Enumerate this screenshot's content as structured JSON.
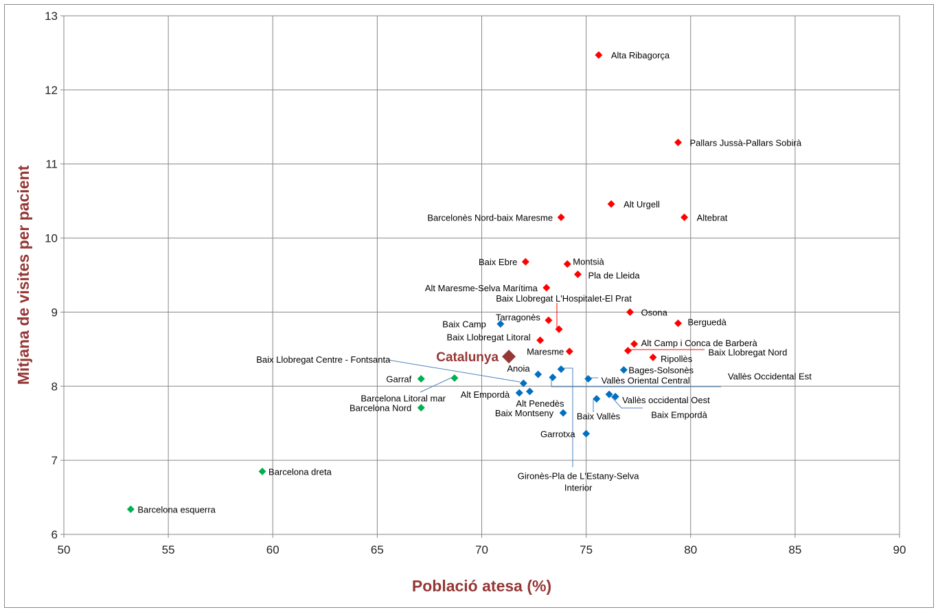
{
  "chart_data": {
    "type": "scatter",
    "xlabel": "Població atesa (%)",
    "ylabel": "Mitjana de visites per pacient",
    "xlim": [
      50,
      90
    ],
    "ylim": [
      6,
      13
    ],
    "x_ticks": [
      "50",
      "55",
      "60",
      "65",
      "70",
      "75",
      "80",
      "85",
      "90"
    ],
    "y_ticks": [
      "6",
      "7",
      "8",
      "9",
      "10",
      "11",
      "12",
      "13"
    ],
    "grid": true,
    "colors": {
      "red": "#ff0000",
      "blue": "#0070c0",
      "green": "#00b050",
      "highlight": "#953735",
      "leader": "#4f81bd"
    },
    "highlight": {
      "label": "Catalunya",
      "x": 71.3,
      "y": 8.4
    },
    "points": [
      {
        "label": "Alta Ribagorça",
        "x": 75.6,
        "y": 12.47,
        "color": "red"
      },
      {
        "label": "Pallars Jussà-Pallars Sobirà",
        "x": 79.4,
        "y": 11.29,
        "color": "red"
      },
      {
        "label": "Alt Urgell",
        "x": 76.2,
        "y": 10.46,
        "color": "red"
      },
      {
        "label": "Altebrat",
        "x": 79.7,
        "y": 10.28,
        "color": "red"
      },
      {
        "label": "Barcelonès Nord-baix Maresme",
        "x": 73.8,
        "y": 10.28,
        "color": "red"
      },
      {
        "label": "Baix Ebre",
        "x": 72.1,
        "y": 9.68,
        "color": "red"
      },
      {
        "label": "Montsià",
        "x": 74.1,
        "y": 9.65,
        "color": "red"
      },
      {
        "label": "Pla de Lleida",
        "x": 74.6,
        "y": 9.51,
        "color": "red"
      },
      {
        "label": "Alt Maresme-Selva Marítima",
        "x": 73.1,
        "y": 9.33,
        "color": "red"
      },
      {
        "label": "Baix Llobregat L'Hospitalet-El Prat",
        "x": 73.7,
        "y": 8.77,
        "color": "red"
      },
      {
        "label": "Tarragonès",
        "x": 73.2,
        "y": 8.89,
        "color": "red"
      },
      {
        "label": "Osona",
        "x": 77.1,
        "y": 9.0,
        "color": "red"
      },
      {
        "label": "Berguedà",
        "x": 79.4,
        "y": 8.85,
        "color": "red"
      },
      {
        "label": "Baix Llobregat Litoral",
        "x": 72.8,
        "y": 8.62,
        "color": "red"
      },
      {
        "label": "Alt Camp i Conca de Barberà",
        "x": 77.3,
        "y": 8.57,
        "color": "red"
      },
      {
        "label": "Baix Llobregat Nord",
        "x": 77.0,
        "y": 8.48,
        "color": "red"
      },
      {
        "label": "Maresme",
        "x": 74.2,
        "y": 8.47,
        "color": "red"
      },
      {
        "label": "Ripollès",
        "x": 78.2,
        "y": 8.39,
        "color": "red"
      },
      {
        "label": "Baix Camp",
        "x": 70.9,
        "y": 8.84,
        "color": "blue"
      },
      {
        "label": "Bages-Solsonès",
        "x": 76.8,
        "y": 8.22,
        "color": "blue"
      },
      {
        "label": "Baix Llobregat Centre - Fontsanta",
        "x": 72.0,
        "y": 8.04,
        "color": "blue"
      },
      {
        "label": "Anoia",
        "x": 72.7,
        "y": 8.16,
        "color": "blue"
      },
      {
        "label": "Gironès-Pla de L'Estany-Selva Interior",
        "x": 73.8,
        "y": 8.23,
        "color": "blue"
      },
      {
        "label": "Vallès Occidental Est",
        "x": 73.4,
        "y": 8.12,
        "color": "blue"
      },
      {
        "label": "Vallès Oriental Central",
        "x": 75.1,
        "y": 8.1,
        "color": "blue"
      },
      {
        "label": "Alt Empordà",
        "x": 71.8,
        "y": 7.91,
        "color": "blue"
      },
      {
        "label": "Alt Penedès",
        "x": 72.3,
        "y": 7.93,
        "color": "blue"
      },
      {
        "label": "Vallès occidental Oest",
        "x": 76.1,
        "y": 7.89,
        "color": "blue"
      },
      {
        "label": "Baix Empordà",
        "x": 76.4,
        "y": 7.86,
        "color": "blue"
      },
      {
        "label": "Baix Vallès",
        "x": 75.5,
        "y": 7.83,
        "color": "blue"
      },
      {
        "label": "Baix Montseny",
        "x": 73.9,
        "y": 7.64,
        "color": "blue"
      },
      {
        "label": "Garrotxa",
        "x": 75.0,
        "y": 7.36,
        "color": "blue"
      },
      {
        "label": "Garraf",
        "x": 67.1,
        "y": 8.1,
        "color": "green"
      },
      {
        "label": "Barcelona Litoral mar",
        "x": 68.7,
        "y": 8.11,
        "color": "green"
      },
      {
        "label": "Barcelona Nord",
        "x": 67.1,
        "y": 7.71,
        "color": "green"
      },
      {
        "label": "Barcelona dreta",
        "x": 59.5,
        "y": 6.85,
        "color": "green"
      },
      {
        "label": "Barcelona esquerra",
        "x": 53.2,
        "y": 6.34,
        "color": "green"
      }
    ]
  }
}
